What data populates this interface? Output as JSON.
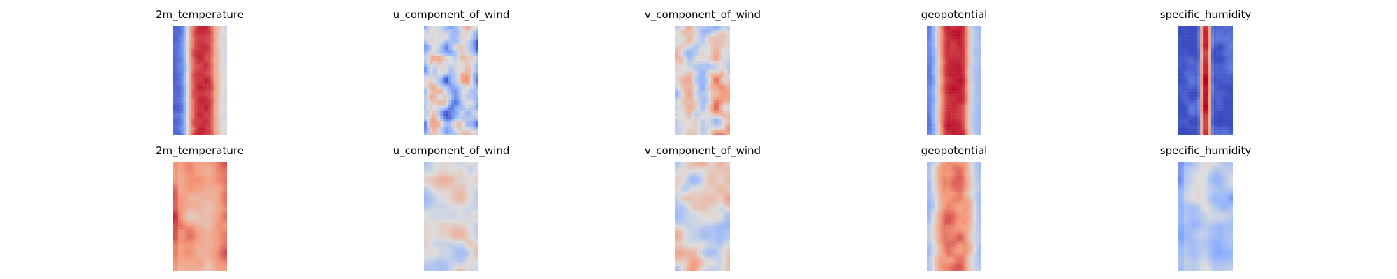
{
  "chart_data": {
    "type": "heatmap",
    "colormap": "coolwarm",
    "axes": "off",
    "layout": {
      "rows": 2,
      "cols": 5
    },
    "panels": [
      {
        "row": 0,
        "col": 0,
        "title": "2m_temperature",
        "pattern": "band",
        "band_amp": 0.85,
        "band_width": 0.3,
        "band_center": 0.55,
        "edge_low": -0.85,
        "noise": 0.12,
        "noise_scale": 8,
        "seed": 11,
        "fill_right": 0.45
      },
      {
        "row": 0,
        "col": 1,
        "title": "u_component_of_wind",
        "pattern": "noise",
        "band_amp": 0.0,
        "band_width": 0.3,
        "band_center": 0.5,
        "edge_low": -0.2,
        "noise": 0.7,
        "noise_scale": 5,
        "seed": 23,
        "bias": -0.25,
        "stripe": 0.35
      },
      {
        "row": 0,
        "col": 2,
        "title": "v_component_of_wind",
        "pattern": "noise",
        "band_amp": 0.0,
        "band_width": 0.3,
        "band_center": 0.5,
        "edge_low": 0.0,
        "noise": 0.75,
        "noise_scale": 4,
        "seed": 37,
        "bias": 0.12,
        "stripe": 0.0
      },
      {
        "row": 0,
        "col": 3,
        "title": "geopotential",
        "pattern": "band",
        "band_amp": 0.9,
        "band_width": 0.32,
        "band_center": 0.5,
        "edge_low": -0.75,
        "noise": 0.12,
        "noise_scale": 6,
        "seed": 41,
        "fill_right": -0.1
      },
      {
        "row": 0,
        "col": 4,
        "title": "specific_humidity",
        "pattern": "narrow",
        "band_amp": 0.95,
        "band_width": 0.1,
        "band_center": 0.5,
        "edge_low": -0.9,
        "noise": 0.25,
        "noise_scale": 4,
        "seed": 53
      },
      {
        "row": 1,
        "col": 0,
        "title": "2m_temperature",
        "pattern": "noise",
        "band_amp": 0.2,
        "band_width": 0.5,
        "band_center": 0.5,
        "edge_low": 0.3,
        "noise": 0.35,
        "noise_scale": 3,
        "seed": 61,
        "bias": 0.6
      },
      {
        "row": 1,
        "col": 1,
        "title": "u_component_of_wind",
        "pattern": "noise",
        "band_amp": 0.0,
        "band_width": 0.3,
        "band_center": 0.5,
        "edge_low": 0.0,
        "noise": 0.5,
        "noise_scale": 3,
        "seed": 71,
        "bias": -0.05
      },
      {
        "row": 1,
        "col": 2,
        "title": "v_component_of_wind",
        "pattern": "noise",
        "band_amp": 0.0,
        "band_width": 0.3,
        "band_center": 0.5,
        "edge_low": 0.0,
        "noise": 0.65,
        "noise_scale": 3,
        "seed": 83,
        "bias": 0.0
      },
      {
        "row": 1,
        "col": 3,
        "title": "geopotential",
        "pattern": "band",
        "band_amp": 0.6,
        "band_width": 0.35,
        "band_center": 0.5,
        "edge_low": -0.3,
        "noise": 0.2,
        "noise_scale": 5,
        "seed": 97,
        "bias": 0.1
      },
      {
        "row": 1,
        "col": 4,
        "title": "specific_humidity",
        "pattern": "noise",
        "band_amp": 0.15,
        "band_width": 0.15,
        "band_center": 0.5,
        "edge_low": -0.35,
        "noise": 0.35,
        "noise_scale": 3,
        "seed": 101,
        "bias": -0.3
      }
    ]
  }
}
